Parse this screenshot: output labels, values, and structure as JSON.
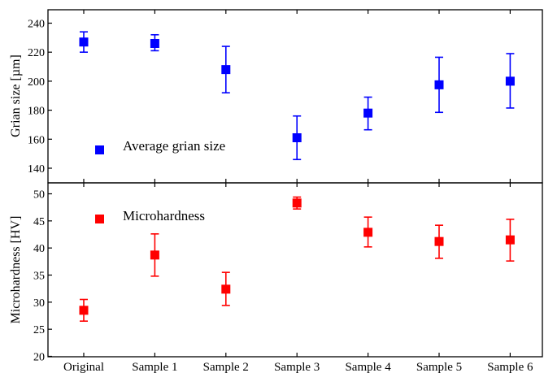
{
  "chart_data": {
    "type": "scatter",
    "categories": [
      "Original",
      "Sample 1",
      "Sample 2",
      "Sample 3",
      "Sample 4",
      "Sample 5",
      "Sample 6"
    ],
    "panels": [
      {
        "ylabel": "Grian size [µm]",
        "ylim": [
          130,
          250
        ],
        "yticks": [
          140,
          160,
          180,
          200,
          220,
          240
        ],
        "series": [
          {
            "name": "Average grian size",
            "color": "#0000ff",
            "values": [
              227,
              226,
              208,
              161,
              178,
              197.5,
              200
            ],
            "err_low": [
              220,
              221,
              192,
              146,
              166.5,
              178.5,
              181.5
            ],
            "err_high": [
              234,
              232,
              224,
              176,
              189,
              216.5,
              219
            ]
          }
        ]
      },
      {
        "ylabel": "Microhardness [HV]",
        "ylim": [
          20,
          52
        ],
        "yticks": [
          20,
          25,
          30,
          35,
          40,
          45,
          50
        ],
        "series": [
          {
            "name": "Microhardness",
            "color": "#ff0000",
            "values": [
              28.5,
              38.7,
              32.4,
              48.3,
              42.9,
              41.2,
              41.5
            ],
            "err_low": [
              26.5,
              34.8,
              29.4,
              47.2,
              40.2,
              38.1,
              37.6
            ],
            "err_high": [
              30.5,
              42.6,
              35.5,
              49.4,
              45.7,
              44.2,
              45.3
            ]
          }
        ]
      }
    ]
  }
}
